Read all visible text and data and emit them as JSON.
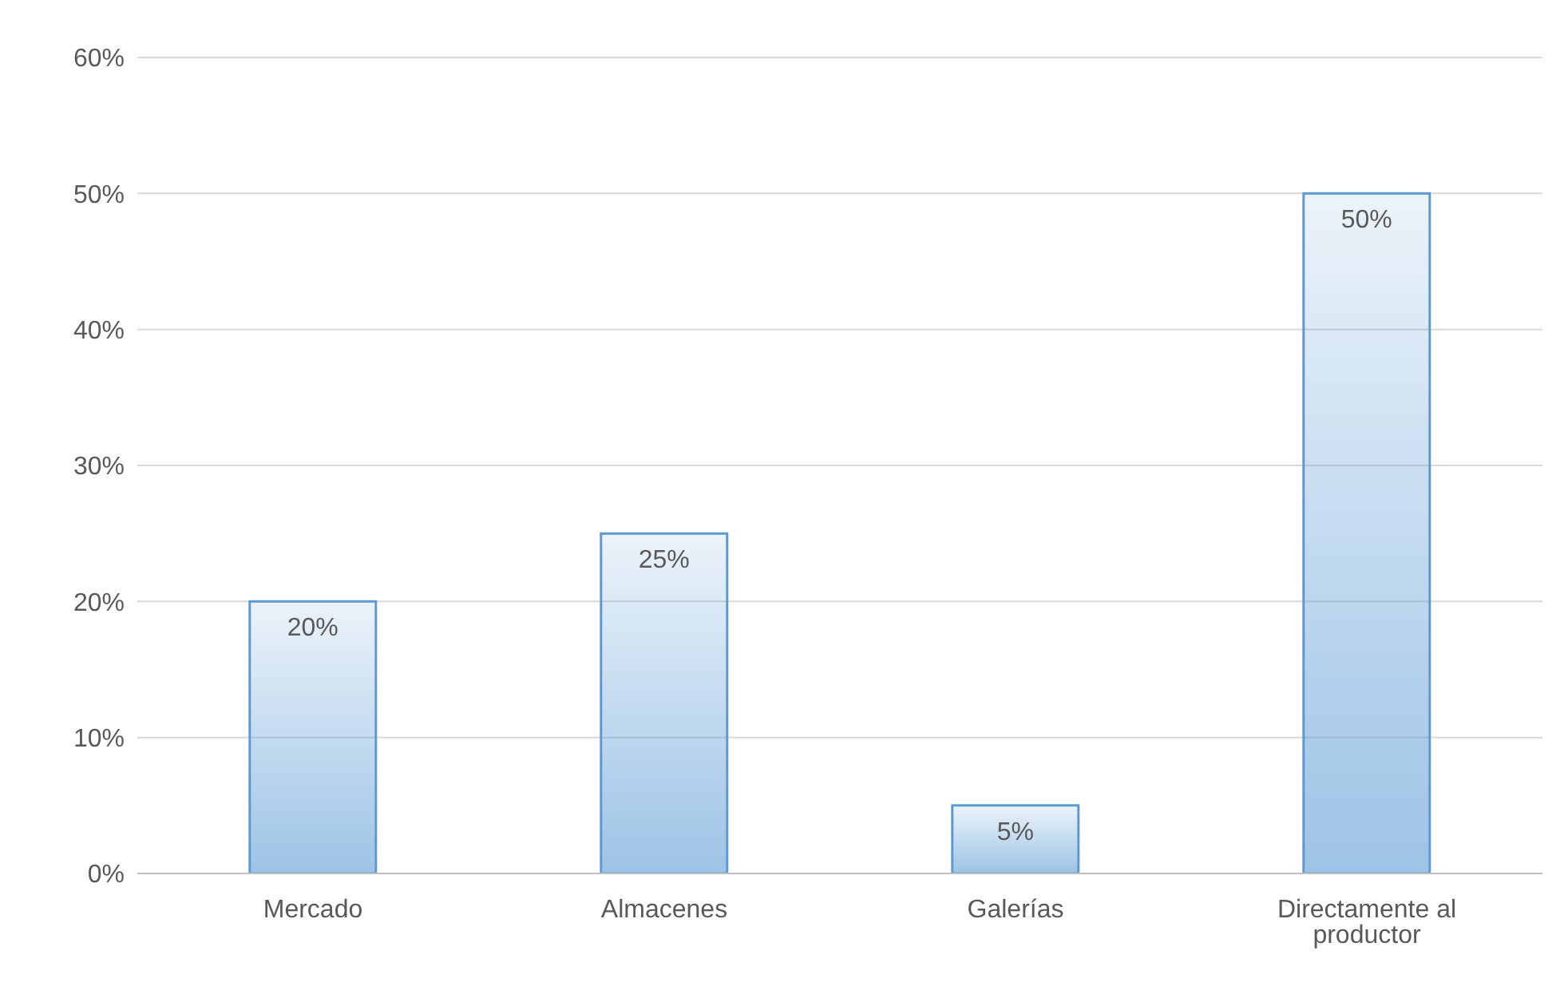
{
  "chart_data": {
    "type": "bar",
    "categories": [
      "Mercado",
      "Almacenes",
      "Galerías",
      "Directamente al productor"
    ],
    "values": [
      20,
      25,
      5,
      50
    ],
    "value_labels": [
      "20%",
      "25%",
      "5%",
      "50%"
    ],
    "color": "#5b9bd5",
    "ylim": [
      0,
      60
    ],
    "yticks": [
      {
        "value": 0,
        "label": "0%"
      },
      {
        "value": 10,
        "label": "10%"
      },
      {
        "value": 20,
        "label": "20%"
      },
      {
        "value": 30,
        "label": "30%"
      },
      {
        "value": 40,
        "label": "40%"
      },
      {
        "value": 50,
        "label": "50%"
      },
      {
        "value": 60,
        "label": "60%"
      }
    ],
    "grid": "y",
    "legend": false
  }
}
